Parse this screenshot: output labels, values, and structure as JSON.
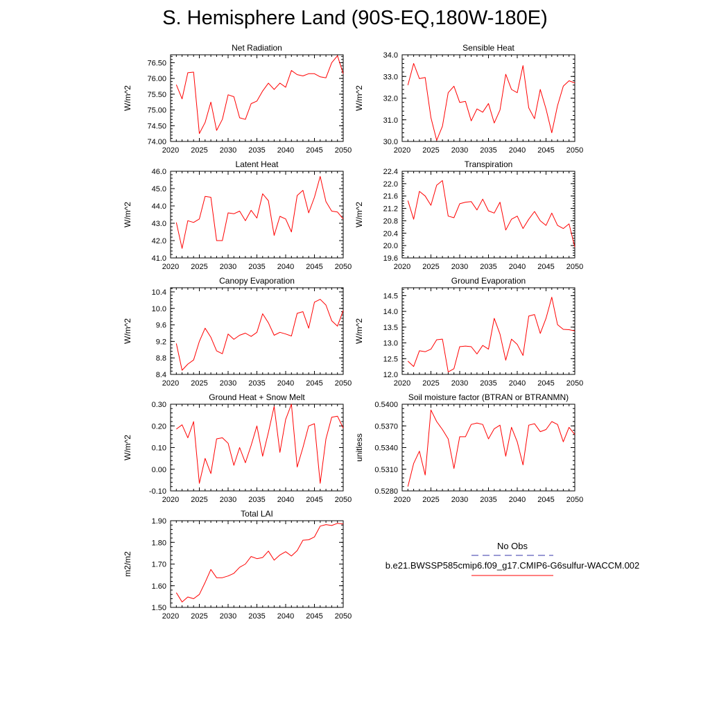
{
  "page": {
    "title": "S. Hemisphere Land (90S-EQ,180W-180E)"
  },
  "legend": {
    "obs_label": "No Obs",
    "obs_color": "#3333aa",
    "case_label": "b.e21.BWSSP585cmip6.f09_g17.CMIP6-G6sulfur-WACCM.002",
    "case_color": "#ff0000"
  },
  "chart_data": [
    {
      "type": "line",
      "title": "Net Radiation",
      "ylabel": "W/m^2",
      "xlim": [
        2020,
        2050
      ],
      "ylim": [
        74.0,
        76.75
      ],
      "xticks": [
        2020,
        2025,
        2030,
        2035,
        2040,
        2045,
        2050
      ],
      "xtick_labels": [
        "2020",
        "2025",
        "2030",
        "2035",
        "2040",
        "2045",
        "2050"
      ],
      "yticks": [
        74.0,
        74.5,
        75.0,
        75.5,
        76.0,
        76.5
      ],
      "ytick_labels": [
        "74.00",
        "74.50",
        "75.00",
        "75.50",
        "76.00",
        "76.50"
      ],
      "x": [
        2021,
        2022,
        2023,
        2024,
        2025,
        2026,
        2027,
        2028,
        2029,
        2030,
        2031,
        2032,
        2033,
        2034,
        2035,
        2036,
        2037,
        2038,
        2039,
        2040,
        2041,
        2042,
        2043,
        2044,
        2045,
        2046,
        2047,
        2048,
        2049,
        2050
      ],
      "series": [
        {
          "values": [
            75.8,
            75.35,
            76.18,
            76.2,
            74.25,
            74.6,
            75.25,
            74.35,
            74.7,
            75.48,
            75.42,
            74.75,
            74.7,
            75.2,
            75.28,
            75.6,
            75.85,
            75.65,
            75.85,
            75.72,
            76.25,
            76.12,
            76.08,
            76.15,
            76.15,
            76.05,
            76.02,
            76.5,
            76.72,
            76.15
          ]
        }
      ]
    },
    {
      "type": "line",
      "title": "Sensible Heat",
      "ylabel": "W/m^2",
      "xlim": [
        2020,
        2050
      ],
      "ylim": [
        30.0,
        34.0
      ],
      "xticks": [
        2020,
        2025,
        2030,
        2035,
        2040,
        2045,
        2050
      ],
      "xtick_labels": [
        "2020",
        "2025",
        "2030",
        "2035",
        "2040",
        "2045",
        "2050"
      ],
      "yticks": [
        30.0,
        31.0,
        32.0,
        33.0,
        34.0
      ],
      "ytick_labels": [
        "30.0",
        "31.0",
        "32.0",
        "33.0",
        "34.0"
      ],
      "x": [
        2021,
        2022,
        2023,
        2024,
        2025,
        2026,
        2027,
        2028,
        2029,
        2030,
        2031,
        2032,
        2033,
        2034,
        2035,
        2036,
        2037,
        2038,
        2039,
        2040,
        2041,
        2042,
        2043,
        2044,
        2045,
        2046,
        2047,
        2048,
        2049,
        2050
      ],
      "series": [
        {
          "values": [
            32.6,
            33.6,
            32.9,
            32.95,
            31.1,
            30.05,
            30.7,
            32.25,
            32.55,
            31.8,
            31.85,
            30.95,
            31.5,
            31.35,
            31.75,
            30.85,
            31.45,
            33.1,
            32.4,
            32.25,
            33.5,
            31.55,
            31.05,
            32.4,
            31.5,
            30.4,
            31.65,
            32.55,
            32.8,
            32.7
          ]
        }
      ]
    },
    {
      "type": "line",
      "title": "Latent Heat",
      "ylabel": "W/m^2",
      "xlim": [
        2020,
        2050
      ],
      "ylim": [
        41.0,
        46.0
      ],
      "xticks": [
        2020,
        2025,
        2030,
        2035,
        2040,
        2045,
        2050
      ],
      "xtick_labels": [
        "2020",
        "2025",
        "2030",
        "2035",
        "2040",
        "2045",
        "2050"
      ],
      "yticks": [
        41.0,
        42.0,
        43.0,
        44.0,
        45.0,
        46.0
      ],
      "ytick_labels": [
        "41.0",
        "42.0",
        "43.0",
        "44.0",
        "45.0",
        "46.0"
      ],
      "x": [
        2021,
        2022,
        2023,
        2024,
        2025,
        2026,
        2027,
        2028,
        2029,
        2030,
        2031,
        2032,
        2033,
        2034,
        2035,
        2036,
        2037,
        2038,
        2039,
        2040,
        2041,
        2042,
        2043,
        2044,
        2045,
        2046,
        2047,
        2048,
        2049,
        2050
      ],
      "series": [
        {
          "values": [
            43.05,
            41.55,
            43.15,
            43.05,
            43.25,
            44.55,
            44.5,
            42.0,
            42.0,
            43.6,
            43.55,
            43.7,
            43.15,
            43.75,
            43.3,
            44.7,
            44.3,
            42.3,
            43.4,
            43.25,
            42.5,
            44.6,
            44.9,
            43.6,
            44.5,
            45.7,
            44.25,
            43.7,
            43.65,
            43.25
          ]
        }
      ]
    },
    {
      "type": "line",
      "title": "Transpiration",
      "ylabel": "W/m^2",
      "xlim": [
        2020,
        2050
      ],
      "ylim": [
        19.6,
        22.4
      ],
      "xticks": [
        2020,
        2025,
        2030,
        2035,
        2040,
        2045,
        2050
      ],
      "xtick_labels": [
        "2020",
        "2025",
        "2030",
        "2035",
        "2040",
        "2045",
        "2050"
      ],
      "yticks": [
        19.6,
        20.0,
        20.4,
        20.8,
        21.2,
        21.6,
        22.0,
        22.4
      ],
      "ytick_labels": [
        "19.6",
        "20.0",
        "20.4",
        "20.8",
        "21.2",
        "21.6",
        "22.0",
        "22.4"
      ],
      "x": [
        2021,
        2022,
        2023,
        2024,
        2025,
        2026,
        2027,
        2028,
        2029,
        2030,
        2031,
        2032,
        2033,
        2034,
        2035,
        2036,
        2037,
        2038,
        2039,
        2040,
        2041,
        2042,
        2043,
        2044,
        2045,
        2046,
        2047,
        2048,
        2049,
        2050
      ],
      "series": [
        {
          "values": [
            21.45,
            20.85,
            21.75,
            21.6,
            21.3,
            21.95,
            22.1,
            20.95,
            20.9,
            21.35,
            21.4,
            21.42,
            21.15,
            21.5,
            21.12,
            21.05,
            21.4,
            20.5,
            20.85,
            20.95,
            20.55,
            20.85,
            21.1,
            20.8,
            20.65,
            21.05,
            20.65,
            20.55,
            20.7,
            19.95
          ]
        }
      ]
    },
    {
      "type": "line",
      "title": "Canopy Evaporation",
      "ylabel": "W/m^2",
      "xlim": [
        2020,
        2050
      ],
      "ylim": [
        8.4,
        10.5
      ],
      "xticks": [
        2020,
        2025,
        2030,
        2035,
        2040,
        2045,
        2050
      ],
      "xtick_labels": [
        "2020",
        "2025",
        "2030",
        "2035",
        "2040",
        "2045",
        "2050"
      ],
      "yticks": [
        8.4,
        8.8,
        9.2,
        9.6,
        10.0,
        10.4
      ],
      "ytick_labels": [
        "8.4",
        "8.8",
        "9.2",
        "9.6",
        "10.0",
        "10.4"
      ],
      "x": [
        2021,
        2022,
        2023,
        2024,
        2025,
        2026,
        2027,
        2028,
        2029,
        2030,
        2031,
        2032,
        2033,
        2034,
        2035,
        2036,
        2037,
        2038,
        2039,
        2040,
        2041,
        2042,
        2043,
        2044,
        2045,
        2046,
        2047,
        2048,
        2049,
        2050
      ],
      "series": [
        {
          "values": [
            9.15,
            8.5,
            8.65,
            8.75,
            9.2,
            9.52,
            9.3,
            8.97,
            8.9,
            9.38,
            9.25,
            9.35,
            9.4,
            9.32,
            9.42,
            9.87,
            9.65,
            9.35,
            9.42,
            9.38,
            9.33,
            9.88,
            9.92,
            9.52,
            10.15,
            10.22,
            10.08,
            9.7,
            9.57,
            9.95
          ]
        }
      ]
    },
    {
      "type": "line",
      "title": "Ground Evaporation",
      "ylabel": "W/m^2",
      "xlim": [
        2020,
        2050
      ],
      "ylim": [
        12.0,
        14.75
      ],
      "xticks": [
        2020,
        2025,
        2030,
        2035,
        2040,
        2045,
        2050
      ],
      "xtick_labels": [
        "2020",
        "2025",
        "2030",
        "2035",
        "2040",
        "2045",
        "2050"
      ],
      "yticks": [
        12.0,
        12.5,
        13.0,
        13.5,
        14.0,
        14.5
      ],
      "ytick_labels": [
        "12.0",
        "12.5",
        "13.0",
        "13.5",
        "14.0",
        "14.5"
      ],
      "x": [
        2021,
        2022,
        2023,
        2024,
        2025,
        2026,
        2027,
        2028,
        2029,
        2030,
        2031,
        2032,
        2033,
        2034,
        2035,
        2036,
        2037,
        2038,
        2039,
        2040,
        2041,
        2042,
        2043,
        2044,
        2045,
        2046,
        2047,
        2048,
        2049,
        2050
      ],
      "series": [
        {
          "values": [
            12.42,
            12.25,
            12.75,
            12.72,
            12.8,
            13.1,
            13.12,
            12.08,
            12.18,
            12.88,
            12.9,
            12.88,
            12.65,
            12.92,
            12.8,
            13.78,
            13.28,
            12.45,
            13.12,
            12.95,
            12.6,
            13.85,
            13.9,
            13.3,
            13.78,
            14.45,
            13.58,
            13.43,
            13.42,
            13.38
          ]
        }
      ]
    },
    {
      "type": "line",
      "title": "Ground Heat + Snow Melt",
      "ylabel": "W/m^2",
      "xlim": [
        2020,
        2050
      ],
      "ylim": [
        -0.1,
        0.3
      ],
      "xticks": [
        2020,
        2025,
        2030,
        2035,
        2040,
        2045,
        2050
      ],
      "xtick_labels": [
        "2020",
        "2025",
        "2030",
        "2035",
        "2040",
        "2045",
        "2050"
      ],
      "yticks": [
        -0.1,
        0.0,
        0.1,
        0.2,
        0.3
      ],
      "ytick_labels": [
        "-0.10",
        "0.00",
        "0.10",
        "0.20",
        "0.30"
      ],
      "x": [
        2021,
        2022,
        2023,
        2024,
        2025,
        2026,
        2027,
        2028,
        2029,
        2030,
        2031,
        2032,
        2033,
        2034,
        2035,
        2036,
        2037,
        2038,
        2039,
        2040,
        2041,
        2042,
        2043,
        2044,
        2045,
        2046,
        2047,
        2048,
        2049,
        2050
      ],
      "series": [
        {
          "values": [
            0.185,
            0.205,
            0.145,
            0.22,
            -0.065,
            0.05,
            -0.02,
            0.14,
            0.145,
            0.12,
            0.018,
            0.1,
            0.03,
            0.11,
            0.2,
            0.06,
            0.17,
            0.29,
            0.078,
            0.23,
            0.3,
            0.01,
            0.1,
            0.2,
            0.21,
            -0.065,
            0.14,
            0.24,
            0.245,
            0.19
          ]
        }
      ]
    },
    {
      "type": "line",
      "title": "Soil moisture factor (BTRAN or BTRANMN)",
      "ylabel": "unitless",
      "xlim": [
        2020,
        2050
      ],
      "ylim": [
        0.528,
        0.54
      ],
      "xticks": [
        2020,
        2025,
        2030,
        2035,
        2040,
        2045,
        2050
      ],
      "xtick_labels": [
        "2020",
        "2025",
        "2030",
        "2035",
        "2040",
        "2045",
        "2050"
      ],
      "yticks": [
        0.528,
        0.531,
        0.534,
        0.537,
        0.54
      ],
      "ytick_labels": [
        "0.5280",
        "0.5310",
        "0.5340",
        "0.5370",
        "0.5400"
      ],
      "x": [
        2021,
        2022,
        2023,
        2024,
        2025,
        2026,
        2027,
        2028,
        2029,
        2030,
        2031,
        2032,
        2033,
        2034,
        2035,
        2036,
        2037,
        2038,
        2039,
        2040,
        2041,
        2042,
        2043,
        2044,
        2045,
        2046,
        2047,
        2048,
        2049,
        2050
      ],
      "series": [
        {
          "values": [
            0.5286,
            0.5318,
            0.5335,
            0.5302,
            0.5392,
            0.5376,
            0.5365,
            0.5352,
            0.5311,
            0.5355,
            0.5355,
            0.5372,
            0.5374,
            0.5372,
            0.5352,
            0.5366,
            0.5371,
            0.5328,
            0.5368,
            0.5348,
            0.5316,
            0.5371,
            0.5373,
            0.5362,
            0.5365,
            0.5376,
            0.5372,
            0.5348,
            0.5368,
            0.5358
          ]
        }
      ]
    },
    {
      "type": "line",
      "title": "Total LAI",
      "ylabel": "m2/m2",
      "xlim": [
        2020,
        2050
      ],
      "ylim": [
        1.5,
        1.9
      ],
      "xticks": [
        2020,
        2025,
        2030,
        2035,
        2040,
        2045,
        2050
      ],
      "xtick_labels": [
        "2020",
        "2025",
        "2030",
        "2035",
        "2040",
        "2045",
        "2050"
      ],
      "yticks": [
        1.5,
        1.6,
        1.7,
        1.8,
        1.9
      ],
      "ytick_labels": [
        "1.50",
        "1.60",
        "1.70",
        "1.80",
        "1.90"
      ],
      "x": [
        2021,
        2022,
        2023,
        2024,
        2025,
        2026,
        2027,
        2028,
        2029,
        2030,
        2031,
        2032,
        2033,
        2034,
        2035,
        2036,
        2037,
        2038,
        2039,
        2040,
        2041,
        2042,
        2043,
        2044,
        2045,
        2046,
        2047,
        2048,
        2049,
        2050
      ],
      "series": [
        {
          "values": [
            1.568,
            1.525,
            1.548,
            1.54,
            1.56,
            1.615,
            1.675,
            1.637,
            1.637,
            1.645,
            1.657,
            1.685,
            1.7,
            1.735,
            1.725,
            1.73,
            1.76,
            1.718,
            1.742,
            1.757,
            1.737,
            1.762,
            1.81,
            1.812,
            1.825,
            1.875,
            1.882,
            1.878,
            1.888,
            1.885
          ]
        }
      ]
    }
  ]
}
